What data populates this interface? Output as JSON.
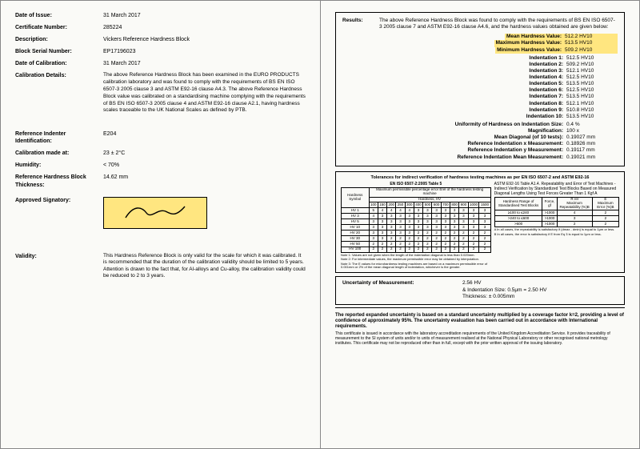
{
  "left": {
    "rows": [
      {
        "label": "Date of Issue:",
        "val": "31 March 2017"
      },
      {
        "label": "Certificate Number:",
        "val": "285224"
      },
      {
        "label": "Description:",
        "val": "Vickers Reference Hardness Block"
      },
      {
        "label": "Block Serial Number:",
        "val": "EP17196023"
      },
      {
        "label": "Date of Calibration:",
        "val": "31 March 2017"
      }
    ],
    "calDetailsLabel": "Calibration Details:",
    "calDetails": "The above Reference Hardness Block has been examined in the EURO PRODUCTS calibration laboratory and was found to comply with the requirements of BS EN ISO 6507-3 2005 clause 3 and ASTM E92-16 clause A4.3. The above Reference Hardness Block value was calibrated on a standardising machine complying  with the requirements of BS EN ISO 6507-3 2005 clause 4 and ASTM E92-16 clause A2.1, having hardness scales traceable to the UK National Scales as defined by PTB.",
    "rows2": [
      {
        "label": "Reference Indenter Identification:",
        "val": "E204"
      },
      {
        "label": "Calibration made at:",
        "val": "23 ± 2°C"
      },
      {
        "label": "Humidity:",
        "val": "< 70%"
      },
      {
        "label": "Reference Hardness Block Thickness:",
        "val": "14.62 mm"
      }
    ],
    "sigLabel": "Approved Signatory:",
    "validityLabel": "Validity:",
    "validity": "This Hardness Reference Block is only valid for the scale for which it was calibrated. It is recommended that the duration of the calibration validity should be limited to 5 years. Attention is drawn to the fact that, for Al-alloys and Cu-alloy, the calibration validity could be reduced to 2 to 3 years."
  },
  "right": {
    "resultsLabel": "Results:",
    "resultsIntro": "The above Reference Hardness Block was found to comply with the requirements of BS EN ISO 6507-3 2005 clause 7 and ASTM E92-16 clause A4.6, and the hardness values obtained are given below:",
    "topStats": [
      {
        "label": "Mean Hardness Value:",
        "val": "512.2  HV10",
        "hl": true
      },
      {
        "label": "Maximum Hardness Value:",
        "val": "513.5  HV10",
        "hl": true
      },
      {
        "label": "Minimum Hardness Value:",
        "val": "509.2  HV10",
        "hl": true
      }
    ],
    "indentations": [
      {
        "label": "Indentation 1:",
        "val": "512.5  HV10"
      },
      {
        "label": "Indentation 2:",
        "val": "509.2  HV10"
      },
      {
        "label": "Indentation 3:",
        "val": "512.1  HV10"
      },
      {
        "label": "Indentation 4:",
        "val": "512.5  HV10"
      },
      {
        "label": "Indentation 5:",
        "val": "513.5  HV10"
      },
      {
        "label": "Indentation 6:",
        "val": "512.5  HV10"
      },
      {
        "label": "Indentation 7:",
        "val": "513.5  HV10"
      },
      {
        "label": "Indentation 8:",
        "val": "512.1  HV10"
      },
      {
        "label": "Indentation 9:",
        "val": "510.8  HV10"
      },
      {
        "label": "Indentation 10:",
        "val": "513.5  HV10"
      }
    ],
    "bottomStats": [
      {
        "label": "Uniformity of Hardness on Indentation Size:",
        "val": "0.4 %"
      },
      {
        "label": "Magnification:",
        "val": "100 x"
      },
      {
        "label": "Mean Diagonal (of 10 tests):",
        "val": "0.19027 mm"
      },
      {
        "label": "Reference Indentation x Measurement:",
        "val": "0.18926 mm"
      },
      {
        "label": "Reference Indentation y Measurement:",
        "val": "0.19117 mm"
      },
      {
        "label": "Reference Indentation Mean Measurement:",
        "val": "0.19021 mm"
      }
    ],
    "tolTitle": "Tolerances for indirect verification of hardness testing machines as per EN ISO 6507-2 and ASTM E92-16",
    "tolLeftTitle": "EN ISO 6507-2:2005 Table 5",
    "tolLeftSub": "Maximum permissible percentage error Erel of the hardness testing machine",
    "tolLeftSub2": "Hardness, HV",
    "tolLeftHeaderRow": [
      "Hardness Symbol",
      "100",
      "150",
      "200",
      "250",
      "300",
      "400",
      "500",
      "600",
      "700",
      "800",
      "900",
      "1000",
      "1500"
    ],
    "tolLeftRows": [
      [
        "HV 1",
        "5",
        "4",
        "4",
        "4",
        "4",
        "3",
        "3",
        "3",
        "3",
        "3",
        "3",
        "3",
        "3"
      ],
      [
        "HV 3",
        "4",
        "3",
        "3",
        "3",
        "3",
        "3",
        "3",
        "3",
        "3",
        "3",
        "3",
        "3",
        "3"
      ],
      [
        "HV 5",
        "3",
        "3",
        "3",
        "3",
        "3",
        "3",
        "3",
        "3",
        "3",
        "3",
        "3",
        "3",
        "3"
      ],
      [
        "HV 10",
        "3",
        "3",
        "3",
        "3",
        "3",
        "3",
        "3",
        "3",
        "3",
        "3",
        "3",
        "3",
        "3"
      ],
      [
        "HV 20",
        "3",
        "3",
        "3",
        "3",
        "3",
        "2",
        "2",
        "2",
        "2",
        "2",
        "2",
        "2",
        "2"
      ],
      [
        "HV 30",
        "3",
        "3",
        "2",
        "2",
        "2",
        "2",
        "2",
        "2",
        "2",
        "2",
        "2",
        "2",
        "2"
      ],
      [
        "HV 50",
        "2",
        "2",
        "2",
        "2",
        "2",
        "2",
        "2",
        "2",
        "2",
        "2",
        "2",
        "2",
        "2"
      ],
      [
        "HV 100",
        "2",
        "2",
        "2",
        "2",
        "2",
        "2",
        "2",
        "2",
        "2",
        "2",
        "2",
        "2",
        "2"
      ]
    ],
    "tolLeftNote1": "Note 1: Values are not given when the length of the indentation diagonal is less than 0.020mm.",
    "tolLeftNote2": "Note 2: For intermediate values, the maximum permissible error may be obtained by interpolation.",
    "tolLeftNote3": "Note 3: The E values for microhardness testing machines are based on a maximum permissible error of 0.001mm or 2% of the mean diagonal length of indentation, whichever is the greater.",
    "tolRightTitle": "ASTM E92-16 Table A1.4. Repeatability and Error of Test Machines - Indirect Verification by Standardized Test Blocks Based on Measured Diagonal Lengths Using Test Forces Greater Than 1 Kgf  A",
    "tolRightHeader": [
      "Hardness Range of Standardised Test Blocks",
      "Force, gf",
      "R rel\nMaximum Repeatability (%)B",
      "E\nMaximum Error (%)B"
    ],
    "tolRightRows": [
      [
        "≥100 to ≤240",
        ">1000",
        "4",
        "2"
      ],
      [
        ">240 to ≤600",
        ">1000",
        "3",
        "2"
      ],
      [
        ">600",
        ">1000",
        "2",
        "2"
      ]
    ],
    "tolRightNoteA": "A In all cases, the repeatability is satisfactory if (dmax - dmin) is equal to 1μm or less.",
    "tolRightNoteB": "B In all cases, the error is satisfactory if E from Eq 3 is equal to 1μm or less.",
    "uncLabel": "Uncertainty of Measurement:",
    "uncVal1": "2.56  HV",
    "uncVal2": "& Indentation Size: 0.5μm = 2.50 HV",
    "uncVal3": "Thickness:  ± 0.005mm",
    "disclaimerBold": "The reported expanded uncertainty is based on a standard uncertainty multiplied by a coverage factor k=2, providing a level of confidence of approximately 95%. The uncertainty evaluation has been carried out in accordance with International requirements.",
    "disclaimerFine": "This certificate is issued in accordance with the laboratory accreditation requirements of the United Kingdom Accreditation Service. It provides traceability of measurement to the SI system of units and/or to units of measurement realised at the National Physical Laboratory or other recognised national metrology institutes. This certificate may not be reproduced other than in full, except with the prior written approval of the issuing laboratory."
  }
}
